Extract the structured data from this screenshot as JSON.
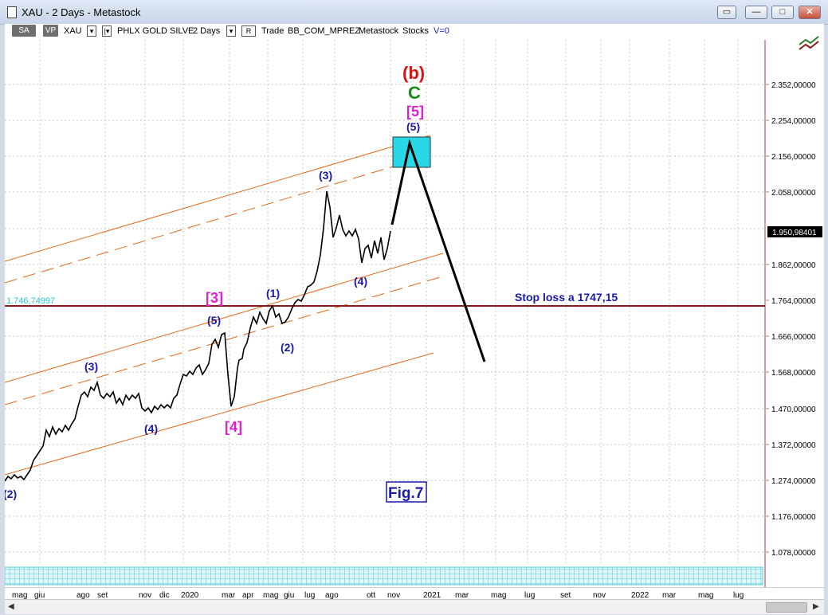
{
  "window": {
    "title": "XAU - 2 Days - Metastock",
    "restore_btn_label": "▭",
    "minimize_btn_label": "—",
    "maximize_btn_label": "□",
    "close_btn_label": "✕"
  },
  "toolbar": {
    "sa_label": "SA",
    "vp_label": "VP",
    "symbol": "XAU",
    "name": "PHLX GOLD SILVE",
    "period": "2 Days",
    "mode": "R",
    "trade": "Trade",
    "broker": "BB_COM_MPREZ",
    "source": "Metastock",
    "type": "Stocks",
    "volume": "V=0"
  },
  "chart_data": {
    "type": "line",
    "series_name": "XAU",
    "x": [
      "mag",
      "giu",
      "ago",
      "set",
      "nov",
      "dic",
      "2020",
      "mar",
      "apr",
      "mag",
      "giu",
      "lug",
      "ago",
      "ott",
      "nov",
      "2021",
      "mar",
      "mag",
      "lug",
      "set",
      "nov",
      "2022",
      "mar",
      "mag",
      "lug"
    ],
    "x_ticks": [
      "mag",
      "giu",
      "ago",
      "set",
      "nov",
      "dic",
      "2020",
      "mar",
      "apr",
      "mag",
      "giu",
      "lug",
      "ago",
      "ott",
      "nov",
      "2021",
      "mar",
      "mag",
      "lug",
      "set",
      "nov",
      "2022",
      "mar",
      "mag",
      "lug"
    ],
    "y_ticks": [
      "2.352,00000",
      "2.254,00000",
      "2.156,00000",
      "2.058,00000",
      "1.862,00000",
      "1.764,00000",
      "1.666,00000",
      "1.568,00000",
      "1.470,00000",
      "1.372,00000",
      "1.274,00000",
      "1.176,00000",
      "1.078,00000"
    ],
    "last_value": "1.950,98401",
    "stop_loss_level_label": "1.746,74997",
    "stop_loss_text": "Stop loss a 1747,15",
    "fig_label": "Fig.7",
    "wave_labels": {
      "b": "(b)",
      "c": "C",
      "five_sq": "[5]",
      "five_top": "(5)",
      "three_top": "(3)",
      "four_top": "(4)",
      "three_sq": "[3]",
      "five_mid": "(5)",
      "one_mid": "(1)",
      "two_mid": "(2)",
      "three_low": "(3)",
      "four_low": "(4)",
      "four_sq": "[4]",
      "two_start": "(2)"
    },
    "colors": {
      "price": "#000000",
      "channel": "#e06a1b",
      "stop_line": "#8b1a1a",
      "target_box": "#29d8e6",
      "wave_blue": "#1a1aa8",
      "wave_magenta": "#e020d0",
      "wave_red": "#e01010",
      "wave_green": "#1a8a1a"
    }
  }
}
